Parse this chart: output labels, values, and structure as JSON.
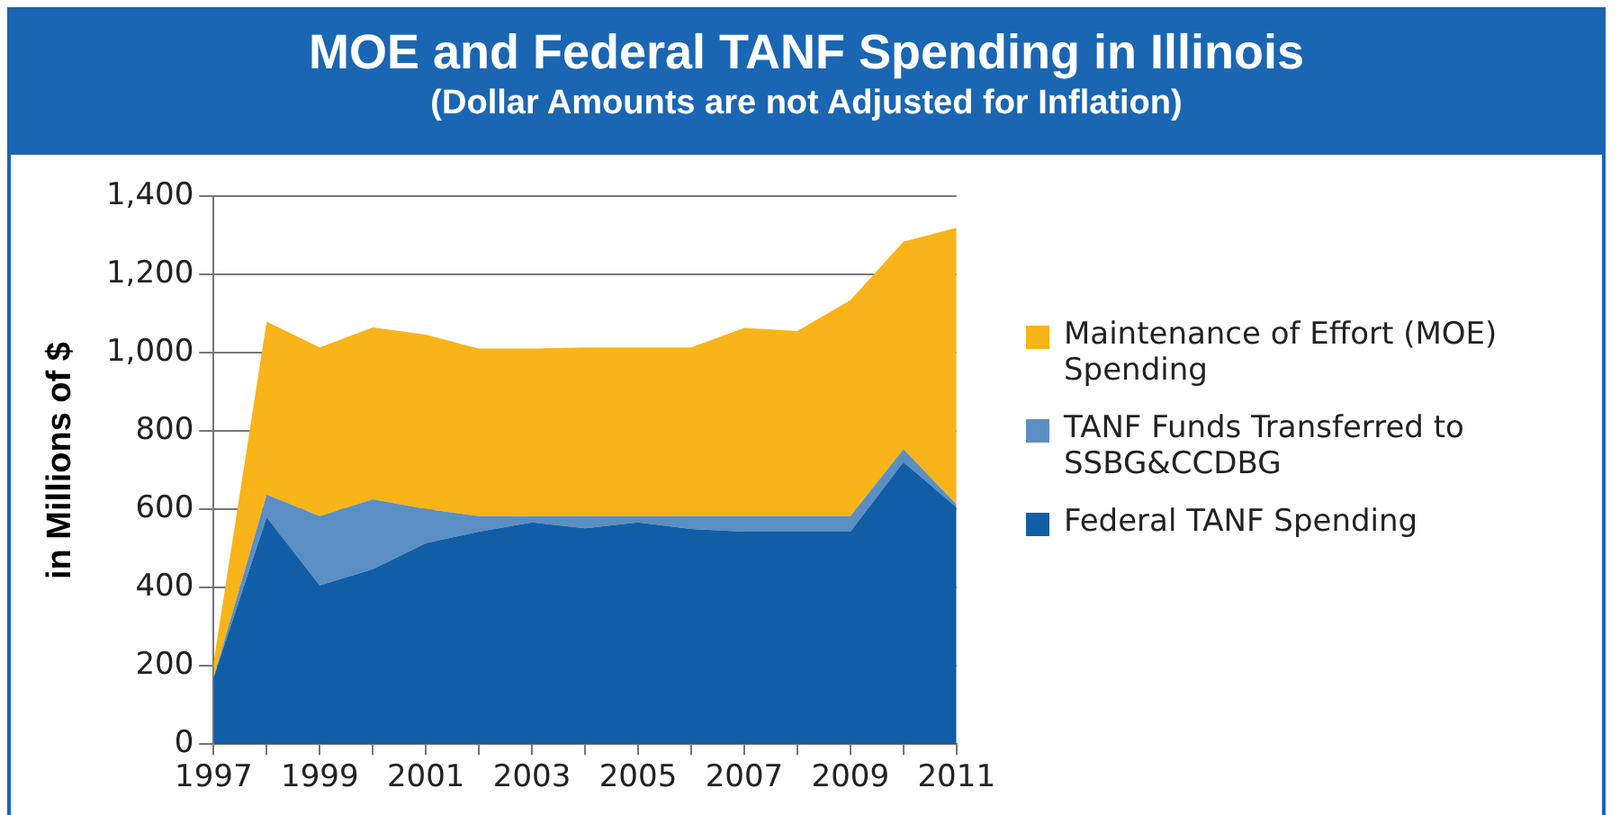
{
  "chart_data": {
    "type": "area",
    "title": "MOE and Federal TANF Spending in Illinois",
    "subtitle": "(Dollar Amounts are not Adjusted for Inflation)",
    "ylabel": "in Millions of $",
    "x": [
      1997,
      1998,
      1999,
      2000,
      2001,
      2002,
      2003,
      2004,
      2005,
      2006,
      2007,
      2008,
      2009,
      2010,
      2011
    ],
    "stacked": true,
    "series": [
      {
        "name": "Federal TANF Spending",
        "color": "#115ea6",
        "values": [
          170,
          580,
          406,
          447,
          514,
          543,
          567,
          552,
          567,
          550,
          543,
          543,
          543,
          721,
          605
        ]
      },
      {
        "name": "TANF Funds Transferred to SSBG&CCDBG",
        "color": "#5b8fc4",
        "values": [
          0,
          58,
          177,
          179,
          87,
          40,
          16,
          31,
          16,
          33,
          40,
          40,
          40,
          33,
          8
        ]
      },
      {
        "name": "Maintenance of Effort (MOE) Spending",
        "color": "#f8b418",
        "values": [
          40,
          442,
          431,
          439,
          446,
          428,
          428,
          431,
          431,
          431,
          481,
          473,
          552,
          530,
          707
        ]
      }
    ],
    "xlim": [
      1997,
      2011
    ],
    "xticks": [
      1997,
      {
        "value": 1998,
        "label": null
      },
      1999,
      {
        "value": 2000,
        "label": null
      },
      2001,
      {
        "value": 2002,
        "label": null
      },
      2003,
      {
        "value": 2004,
        "label": null
      },
      2005,
      {
        "value": 2006,
        "label": null
      },
      2007,
      {
        "value": 2008,
        "label": null
      },
      2009,
      {
        "value": 2010,
        "label": null
      },
      2011
    ],
    "ylim": [
      0,
      1400
    ],
    "yticks": [
      0,
      200,
      400,
      600,
      800,
      {
        "value": 1000,
        "label": "1,000"
      },
      {
        "value": 1200,
        "label": "1,200"
      },
      {
        "value": 1400,
        "label": "1,400"
      }
    ],
    "grid": "y",
    "legend": "right"
  }
}
